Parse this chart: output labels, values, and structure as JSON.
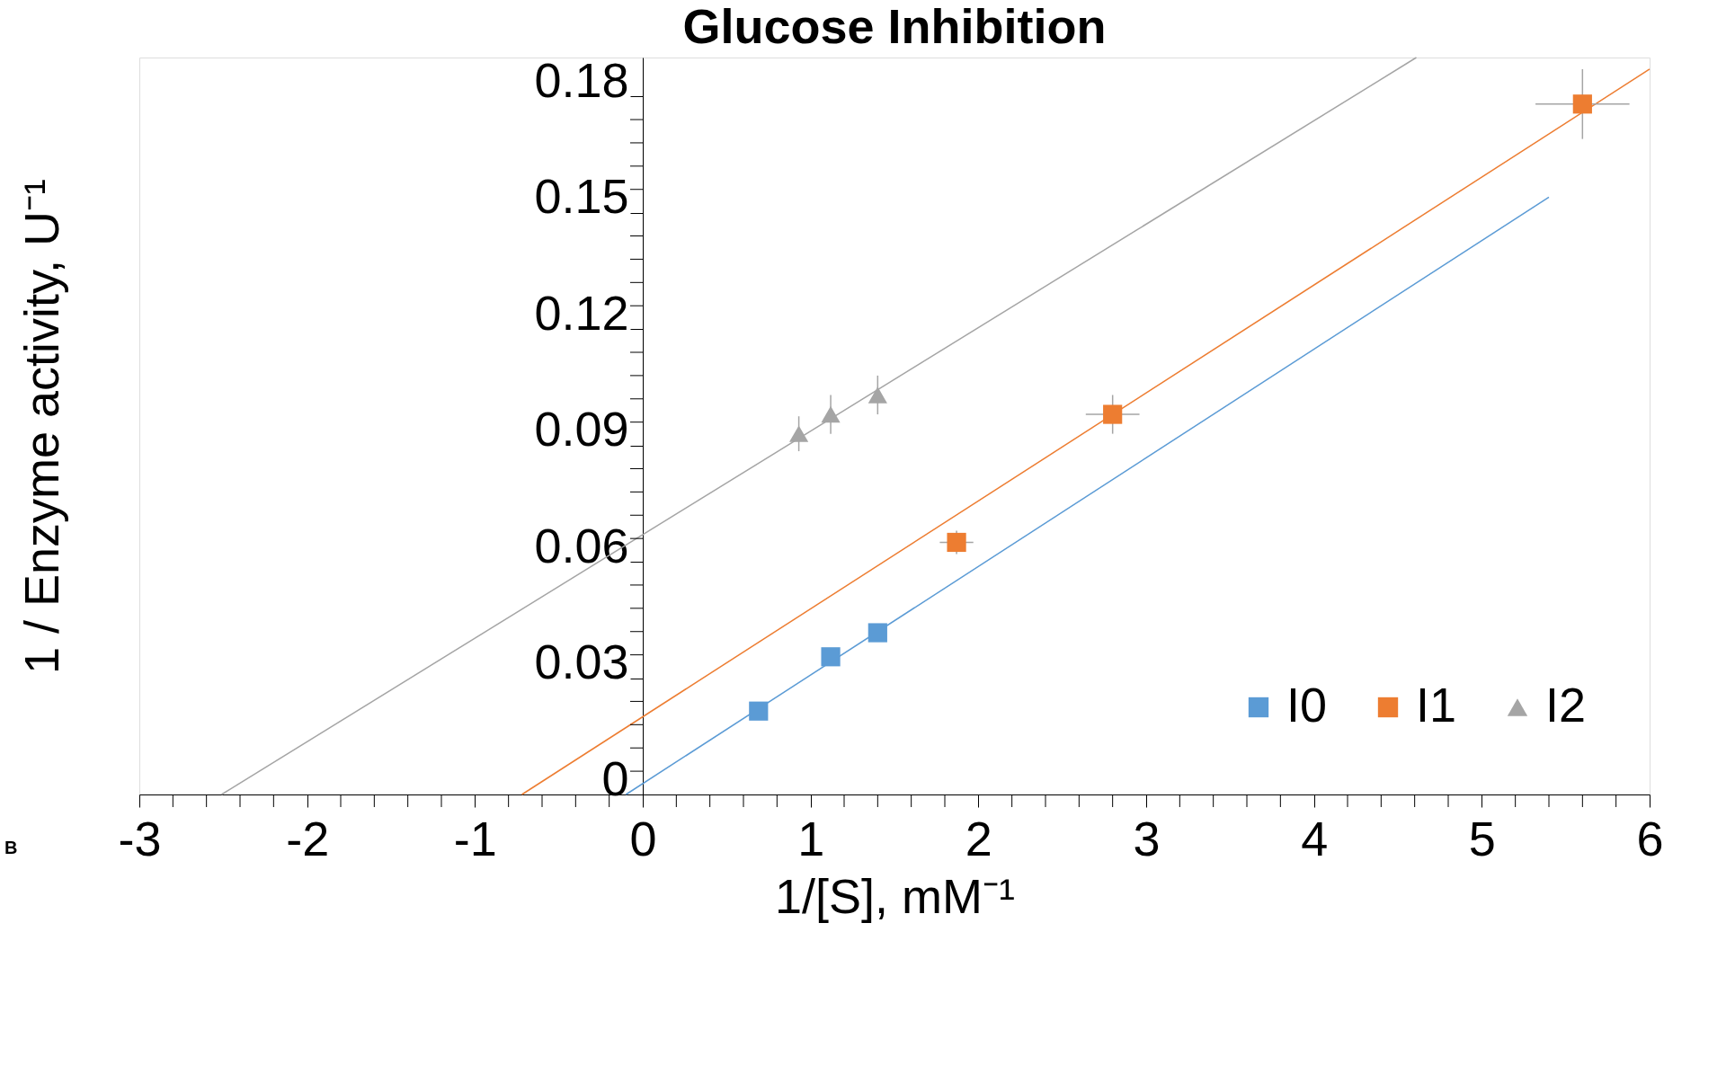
{
  "chart_data": {
    "type": "scatter",
    "title": "Glucose Inhibition",
    "xlabel": "1/[S], mM⁻¹",
    "ylabel": "1 / Enzyme activity, U⁻¹",
    "annotations": [
      "B"
    ],
    "xlim": [
      -3,
      6
    ],
    "ylim": [
      0,
      0.19
    ],
    "xticks": [
      -3,
      {
        "value": -2.8,
        "label": null
      },
      {
        "value": -2.6,
        "label": null
      },
      {
        "value": -2.4,
        "label": null
      },
      {
        "value": -2.2,
        "label": null
      },
      -2,
      {
        "value": -1.8,
        "label": null
      },
      {
        "value": -1.6,
        "label": null
      },
      {
        "value": -1.4,
        "label": null
      },
      {
        "value": -1.2,
        "label": null
      },
      -1,
      {
        "value": -0.8,
        "label": null
      },
      {
        "value": -0.6,
        "label": null
      },
      {
        "value": -0.4,
        "label": null
      },
      {
        "value": -0.2,
        "label": null
      },
      0,
      {
        "value": 0.2,
        "label": null
      },
      {
        "value": 0.4,
        "label": null
      },
      {
        "value": 0.6,
        "label": null
      },
      {
        "value": 0.8,
        "label": null
      },
      1,
      {
        "value": 1.2,
        "label": null
      },
      {
        "value": 1.4,
        "label": null
      },
      {
        "value": 1.6,
        "label": null
      },
      {
        "value": 1.8,
        "label": null
      },
      2,
      {
        "value": 2.2,
        "label": null
      },
      {
        "value": 2.4,
        "label": null
      },
      {
        "value": 2.6,
        "label": null
      },
      {
        "value": 2.8,
        "label": null
      },
      3,
      {
        "value": 3.2,
        "label": null
      },
      {
        "value": 3.4,
        "label": null
      },
      {
        "value": 3.6,
        "label": null
      },
      {
        "value": 3.8,
        "label": null
      },
      4,
      {
        "value": 4.2,
        "label": null
      },
      {
        "value": 4.4,
        "label": null
      },
      {
        "value": 4.6,
        "label": null
      },
      {
        "value": 4.8,
        "label": null
      },
      5,
      {
        "value": 5.2,
        "label": null
      },
      {
        "value": 5.4,
        "label": null
      },
      {
        "value": 5.6,
        "label": null
      },
      {
        "value": 5.8,
        "label": null
      },
      6
    ],
    "yticks": [
      0,
      {
        "value": 0.006,
        "label": null
      },
      {
        "value": 0.012,
        "label": null
      },
      {
        "value": 0.018,
        "label": null
      },
      {
        "value": 0.024,
        "label": null
      },
      0.03,
      {
        "value": 0.036,
        "label": null
      },
      {
        "value": 0.042,
        "label": null
      },
      {
        "value": 0.048,
        "label": null
      },
      {
        "value": 0.054,
        "label": null
      },
      0.06,
      {
        "value": 0.066,
        "label": null
      },
      {
        "value": 0.072,
        "label": null
      },
      {
        "value": 0.078,
        "label": null
      },
      {
        "value": 0.084,
        "label": null
      },
      0.09,
      {
        "value": 0.096,
        "label": null
      },
      {
        "value": 0.102,
        "label": null
      },
      {
        "value": 0.108,
        "label": null
      },
      {
        "value": 0.114,
        "label": null
      },
      0.12,
      {
        "value": 0.126,
        "label": null
      },
      {
        "value": 0.132,
        "label": null
      },
      {
        "value": 0.138,
        "label": null
      },
      {
        "value": 0.144,
        "label": null
      },
      0.15,
      {
        "value": 0.156,
        "label": null
      },
      {
        "value": 0.162,
        "label": null
      },
      {
        "value": 0.168,
        "label": null
      },
      {
        "value": 0.174,
        "label": null
      },
      0.18
    ],
    "grid": false,
    "legend": "bottom right",
    "series": [
      {
        "type": "line",
        "color": "#a5a5a5",
        "x": [
          -2.51,
          4.61
        ],
        "values": [
          0,
          0.19
        ]
      },
      {
        "type": "line",
        "color": "#ed7d31",
        "x": [
          -0.72,
          6
        ],
        "values": [
          0,
          0.187
        ]
      },
      {
        "type": "line",
        "color": "#5b9bd5",
        "x": [
          -0.1,
          5.4
        ],
        "values": [
          0,
          0.154
        ]
      },
      {
        "name": "I0",
        "color": "#5b9bd5",
        "marker": "square",
        "x": [
          0.69,
          1.12,
          1.4
        ],
        "values": [
          0.0215,
          0.0355,
          0.0417
        ]
      },
      {
        "name": "I1",
        "color": "#ed7d31",
        "marker": "square",
        "x": [
          1.87,
          2.8,
          5.6
        ],
        "values": [
          0.065,
          0.098,
          0.178
        ],
        "errors": [
          0.003,
          0.005,
          0.009
        ],
        "xerrors": [
          0.1,
          0.16,
          0.28
        ]
      },
      {
        "name": "I2",
        "color": "#a5a5a5",
        "marker": "triangle",
        "x": [
          0.93,
          1.12,
          1.4
        ],
        "values": [
          0.093,
          0.098,
          0.103
        ],
        "errors": [
          0.0045,
          0.005,
          0.005
        ]
      }
    ]
  }
}
